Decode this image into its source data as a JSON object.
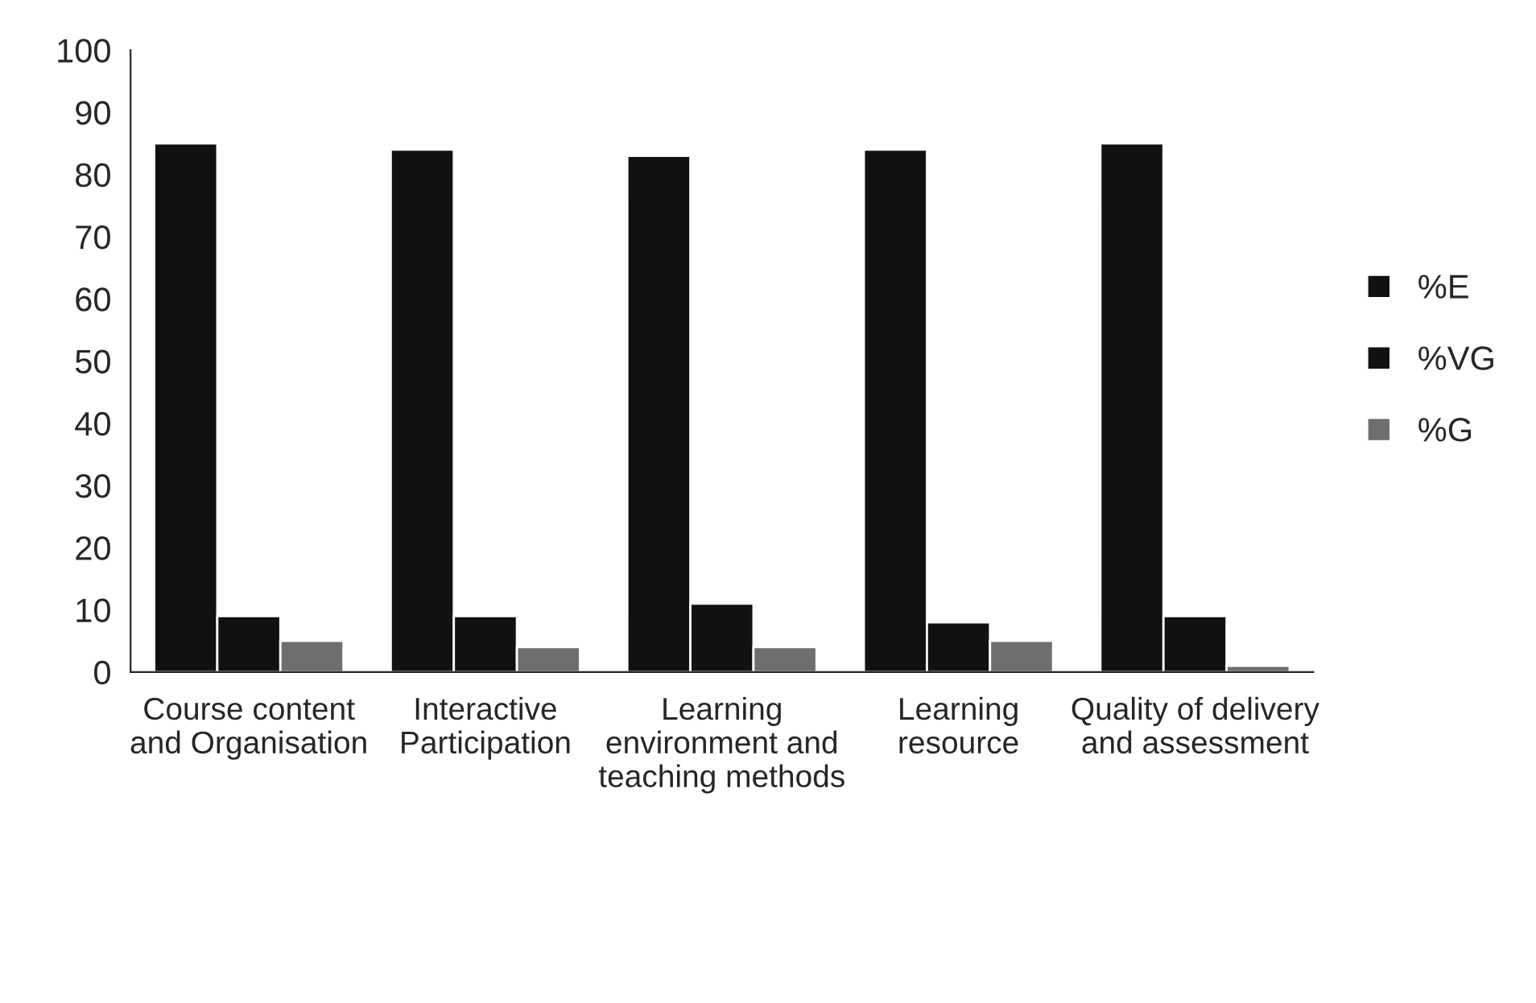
{
  "chart_data": {
    "type": "bar",
    "categories": [
      "Course content and Organisation",
      "Interactive Participation",
      "Learning environment and teaching methods",
      "Learning resource",
      "Quality of delivery and assessment"
    ],
    "series": [
      {
        "name": "%E",
        "color": "#111111",
        "values": [
          85,
          84,
          83,
          84,
          85
        ]
      },
      {
        "name": "%VG",
        "color": "#111111",
        "values": [
          9,
          9,
          11,
          8,
          9
        ]
      },
      {
        "name": "%G",
        "color": "#6e6e6e",
        "values": [
          5,
          4,
          4,
          5,
          1
        ]
      }
    ],
    "ylim": [
      0,
      100
    ],
    "yticks": [
      0,
      10,
      20,
      30,
      40,
      50,
      60,
      70,
      80,
      90,
      100
    ],
    "grid": false,
    "legend": "right"
  }
}
